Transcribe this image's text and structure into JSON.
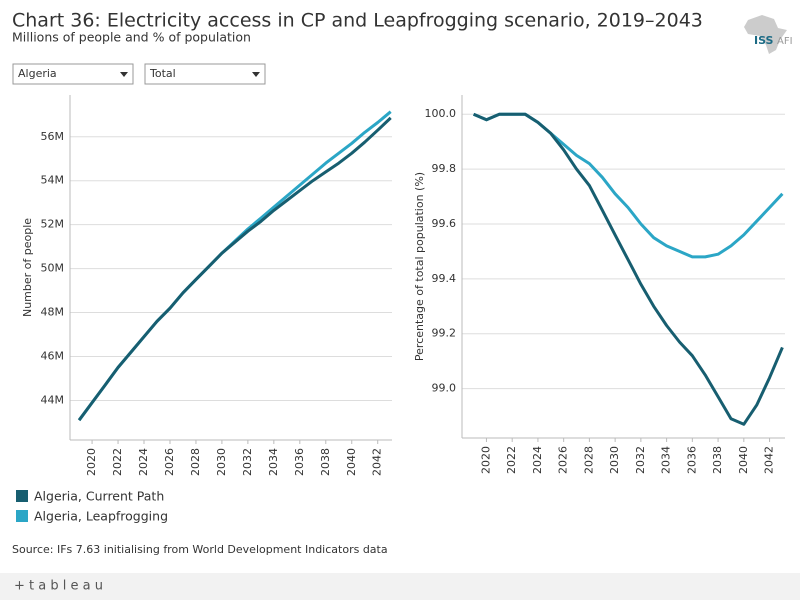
{
  "title": "Chart 36: Electricity access in CP and Leapfrogging scenario, 2019–2043",
  "subtitle": "Millions of people and % of population",
  "filters": [
    "Algeria",
    "Total"
  ],
  "source": "Source: IFs 7.63 initialising from World Development Indicators data",
  "logo": {
    "main": "ISS",
    "sub": "AFI"
  },
  "footer": "+ t a b l e a u",
  "chart_data": [
    {
      "type": "line",
      "ylabel": "Number of people",
      "x": [
        2019,
        2020,
        2021,
        2022,
        2023,
        2024,
        2025,
        2026,
        2027,
        2028,
        2029,
        2030,
        2031,
        2032,
        2033,
        2034,
        2035,
        2036,
        2037,
        2038,
        2039,
        2040,
        2041,
        2042,
        2043
      ],
      "xlim": [
        2018.3,
        2043.1
      ],
      "xticks": [
        2020,
        2022,
        2024,
        2026,
        2028,
        2030,
        2032,
        2034,
        2036,
        2038,
        2040,
        2042
      ],
      "ylim": [
        42.2,
        57.9
      ],
      "yticks": [
        {
          "value": 44,
          "label": "44M"
        },
        {
          "value": 46,
          "label": "46M"
        },
        {
          "value": 48,
          "label": "48M"
        },
        {
          "value": 50,
          "label": "50M"
        },
        {
          "value": 52,
          "label": "52M"
        },
        {
          "value": 54,
          "label": "54M"
        },
        {
          "value": 56,
          "label": "56M"
        }
      ],
      "grid": true,
      "series": [
        {
          "name": "Algeria, Leapfrogging",
          "color": "#2ba6c6",
          "values": [
            43.1,
            43.9,
            44.7,
            45.5,
            46.2,
            46.9,
            47.6,
            48.2,
            48.9,
            49.5,
            50.1,
            50.7,
            51.25,
            51.8,
            52.3,
            52.8,
            53.3,
            53.8,
            54.3,
            54.8,
            55.25,
            55.7,
            56.2,
            56.65,
            57.14
          ]
        },
        {
          "name": "Algeria, Current Path",
          "color": "#175e70",
          "values": [
            43.1,
            43.9,
            44.7,
            45.5,
            46.2,
            46.9,
            47.6,
            48.2,
            48.9,
            49.5,
            50.1,
            50.7,
            51.2,
            51.7,
            52.15,
            52.65,
            53.1,
            53.55,
            54.0,
            54.4,
            54.8,
            55.25,
            55.75,
            56.3,
            56.86
          ]
        }
      ]
    },
    {
      "type": "line",
      "ylabel": "Percentage of total population (%)",
      "x": [
        2019,
        2020,
        2021,
        2022,
        2023,
        2024,
        2025,
        2026,
        2027,
        2028,
        2029,
        2030,
        2031,
        2032,
        2033,
        2034,
        2035,
        2036,
        2037,
        2038,
        2039,
        2040,
        2041,
        2042,
        2043
      ],
      "xlim": [
        2018.1,
        2043.2
      ],
      "xticks": [
        2020,
        2022,
        2024,
        2026,
        2028,
        2030,
        2032,
        2034,
        2036,
        2038,
        2040,
        2042
      ],
      "ylim": [
        98.82,
        100.07
      ],
      "yticks": [
        {
          "value": 99,
          "label": "99.0"
        },
        99.2,
        99.4,
        99.6,
        99.8,
        {
          "value": 100,
          "label": "100.0"
        }
      ],
      "grid": true,
      "series": [
        {
          "name": "Algeria, Leapfrogging",
          "color": "#2ba6c6",
          "values": [
            100,
            99.98,
            100,
            100,
            100,
            99.97,
            99.93,
            99.89,
            99.85,
            99.82,
            99.77,
            99.71,
            99.66,
            99.6,
            99.55,
            99.52,
            99.5,
            99.48,
            99.48,
            99.49,
            99.52,
            99.56,
            99.61,
            99.66,
            99.71
          ]
        },
        {
          "name": "Algeria, Current Path",
          "color": "#175e70",
          "values": [
            100,
            99.98,
            100,
            100,
            100,
            99.97,
            99.93,
            99.87,
            99.8,
            99.74,
            99.65,
            99.56,
            99.47,
            99.38,
            99.3,
            99.23,
            99.17,
            99.12,
            99.05,
            98.97,
            98.89,
            98.87,
            98.94,
            99.04,
            99.15
          ]
        }
      ]
    }
  ]
}
